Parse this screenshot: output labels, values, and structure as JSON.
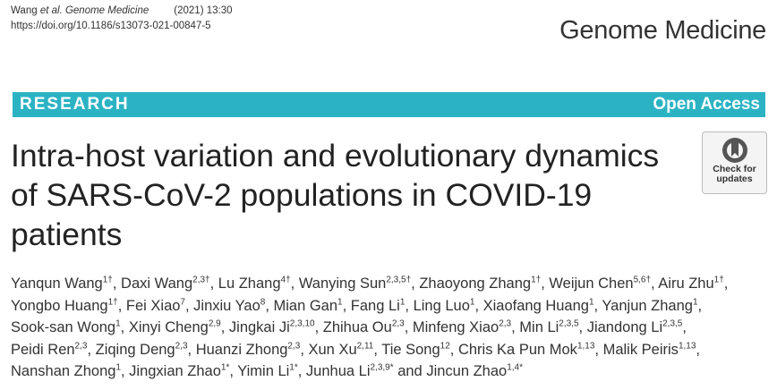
{
  "header": {
    "author": "Wang",
    "journal_italic": "et al. Genome Medicine",
    "year_volume": "(2021) 13:30",
    "doi": "https://doi.org/10.1186/s13073-021-00847-5",
    "journal": "Genome Medicine"
  },
  "banner": {
    "left": "RESEARCH",
    "right": "Open Access"
  },
  "title": "Intra-host variation and evolutionary dynamics of SARS-CoV-2 populations in COVID-19 patients",
  "badge": "Check for updates",
  "authors": [
    {
      "name": "Yanqun Wang",
      "sup": "1†",
      "sep": ", "
    },
    {
      "name": "Daxi Wang",
      "sup": "2,3†",
      "sep": ", "
    },
    {
      "name": "Lu Zhang",
      "sup": "4†",
      "sep": ", "
    },
    {
      "name": "Wanying Sun",
      "sup": "2,3,5†",
      "sep": ", "
    },
    {
      "name": "Zhaoyong Zhang",
      "sup": "1†",
      "sep": ", "
    },
    {
      "name": "Weijun Chen",
      "sup": "5,6†",
      "sep": ", "
    },
    {
      "name": "Airu Zhu",
      "sup": "1†",
      "sep": ", "
    },
    {
      "name": "Yongbo Huang",
      "sup": "1†",
      "sep": ", "
    },
    {
      "name": "Fei Xiao",
      "sup": "7",
      "sep": ", "
    },
    {
      "name": "Jinxiu Yao",
      "sup": "8",
      "sep": ", "
    },
    {
      "name": "Mian Gan",
      "sup": "1",
      "sep": ", "
    },
    {
      "name": "Fang Li",
      "sup": "1",
      "sep": ", "
    },
    {
      "name": "Ling Luo",
      "sup": "1",
      "sep": ", "
    },
    {
      "name": "Xiaofang Huang",
      "sup": "1",
      "sep": ", "
    },
    {
      "name": "Yanjun Zhang",
      "sup": "1",
      "sep": ", "
    },
    {
      "name": "Sook-san Wong",
      "sup": "1",
      "sep": ", "
    },
    {
      "name": "Xinyi Cheng",
      "sup": "2,9",
      "sep": ", "
    },
    {
      "name": "Jingkai Ji",
      "sup": "2,3,10",
      "sep": ", "
    },
    {
      "name": "Zhihua Ou",
      "sup": "2,3",
      "sep": ", "
    },
    {
      "name": "Minfeng Xiao",
      "sup": "2,3",
      "sep": ", "
    },
    {
      "name": "Min Li",
      "sup": "2,3,5",
      "sep": ", "
    },
    {
      "name": "Jiandong Li",
      "sup": "2,3,5",
      "sep": ", "
    },
    {
      "name": "Peidi Ren",
      "sup": "2,3",
      "sep": ", "
    },
    {
      "name": "Ziqing Deng",
      "sup": "2,3",
      "sep": ", "
    },
    {
      "name": "Huanzi Zhong",
      "sup": "2,3",
      "sep": ", "
    },
    {
      "name": "Xun Xu",
      "sup": "2,11",
      "sep": ", "
    },
    {
      "name": "Tie Song",
      "sup": "12",
      "sep": ", "
    },
    {
      "name": "Chris Ka Pun Mok",
      "sup": "1,13",
      "sep": ", "
    },
    {
      "name": "Malik Peiris",
      "sup": "1,13",
      "sep": ", "
    },
    {
      "name": "Nanshan Zhong",
      "sup": "1",
      "sep": ", "
    },
    {
      "name": "Jingxian Zhao",
      "sup": "1*",
      "sep": ", "
    },
    {
      "name": "Yimin Li",
      "sup": "1*",
      "sep": ", "
    },
    {
      "name": "Junhua Li",
      "sup": "2,3,9*",
      "sep": " and "
    },
    {
      "name": "Jincun Zhao",
      "sup": "1,4*"
    }
  ]
}
